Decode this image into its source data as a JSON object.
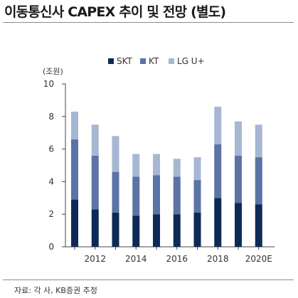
{
  "header": {
    "title": "이동통신사 CAPEX 추이 및 전망 (별도)"
  },
  "footer": {
    "source": "자료: 각 사, KB증권 추정"
  },
  "chart_data": {
    "type": "bar",
    "stacked": true,
    "title": "이동통신사 CAPEX 추이 및 전망 (별도)",
    "ylabel": "(조원)",
    "xlabel": "",
    "categories": [
      "2011",
      "2012",
      "2013",
      "2014",
      "2015",
      "2016",
      "2017",
      "2018",
      "2019",
      "2020E"
    ],
    "x_tick_labels": [
      "2012",
      "2014",
      "2016",
      "2018",
      "2020E"
    ],
    "ylim": [
      0,
      10
    ],
    "yticks": [
      0,
      2,
      4,
      6,
      8,
      10
    ],
    "grid": false,
    "legend_position": "top-right",
    "series": [
      {
        "name": "SKT",
        "color": "#0d2a57",
        "values": [
          2.9,
          2.3,
          2.1,
          1.9,
          2.0,
          2.0,
          2.1,
          3.0,
          2.7,
          2.6
        ]
      },
      {
        "name": "KT",
        "color": "#5b73a5",
        "values": [
          3.7,
          3.3,
          2.5,
          2.4,
          2.4,
          2.3,
          2.0,
          3.3,
          2.9,
          2.9
        ]
      },
      {
        "name": "LG U+",
        "color": "#a7b7d3",
        "values": [
          1.7,
          1.9,
          2.2,
          1.4,
          1.3,
          1.1,
          1.4,
          2.3,
          2.1,
          2.0
        ]
      }
    ]
  }
}
